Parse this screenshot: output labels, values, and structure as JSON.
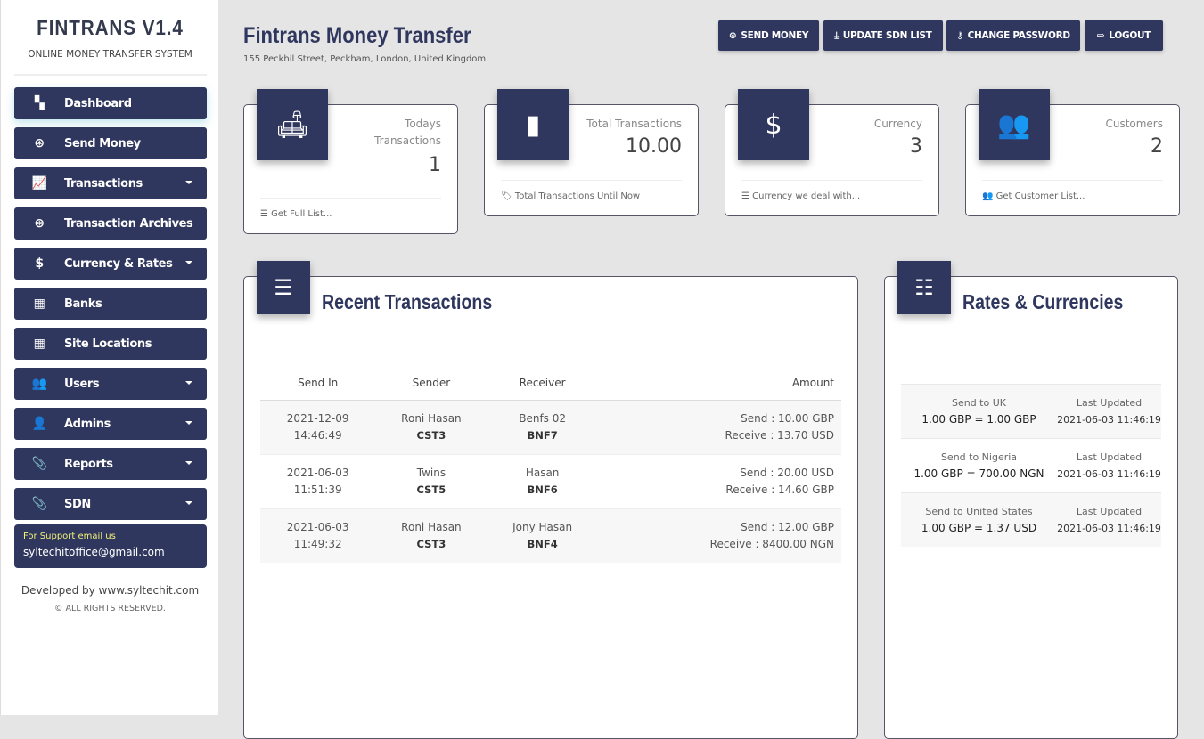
{
  "sidebar": {
    "brand": "FINTRANS V1.4",
    "tagline": "ONLINE  MONEY TRANSFER SYSTEM",
    "items": [
      {
        "label": "Dashboard",
        "icon": "dashboard-icon"
      },
      {
        "label": "Send Money",
        "icon": "dollar-circle-icon"
      },
      {
        "label": "Transactions",
        "icon": "chart-line-icon",
        "dropdown": true
      },
      {
        "label": "Transaction Archives",
        "icon": "dollar-circle-icon"
      },
      {
        "label": "Currency & Rates",
        "icon": "dollar-icon",
        "dropdown": true
      },
      {
        "label": "Banks",
        "icon": "building-icon"
      },
      {
        "label": "Site Locations",
        "icon": "building-icon"
      },
      {
        "label": "Users",
        "icon": "users-icon",
        "dropdown": true
      },
      {
        "label": "Admins",
        "icon": "admin-icon",
        "dropdown": true
      },
      {
        "label": "Reports",
        "icon": "paperclip-icon",
        "dropdown": true
      },
      {
        "label": "SDN",
        "icon": "paperclip-icon",
        "dropdown": true
      }
    ],
    "support_label": "For Support email us",
    "support_email": "syltechitoffice@gmail.com",
    "developed": "Developed by www.syltechit.com",
    "rights": "© ALL  RIGHTS  RESERVED."
  },
  "header": {
    "title": "Fintrans Money Transfer",
    "address": "155  Peckhil Street,  Peckham,  London, United  Kingdom",
    "buttons": [
      {
        "label": "SEND MONEY",
        "icon": "dollar-circle-icon"
      },
      {
        "label": "UPDATE SDN LIST",
        "icon": "download-icon"
      },
      {
        "label": "CHANGE PASSWORD",
        "icon": "key-icon"
      },
      {
        "label": "LOGOUT",
        "icon": "logout-icon"
      }
    ]
  },
  "cards": [
    {
      "label": "Todays Transactions",
      "value": "1",
      "footer": "Get Full List..."
    },
    {
      "label": "Total Transactions",
      "value": "10.00",
      "footer": "Total Transactions Until Now"
    },
    {
      "label": "Currency",
      "value": "3",
      "footer": "Currency we deal with..."
    },
    {
      "label": "Customers",
      "value": "2",
      "footer": "Get Customer List..."
    }
  ],
  "recent": {
    "title": "Recent Transactions",
    "columns": [
      "Send In",
      "Sender",
      "Receiver",
      "Amount"
    ],
    "rows": [
      {
        "date": "2021-12-09",
        "time": "14:46:49",
        "sender": "Roni Hasan",
        "sender_id": "CST3",
        "receiver": "Benfs 02",
        "receiver_id": "BNF7",
        "send": "Send : 10.00 GBP",
        "receive": "Receive : 13.70 USD"
      },
      {
        "date": "2021-06-03",
        "time": "11:51:39",
        "sender": "Twins",
        "sender_id": "CST5",
        "receiver": "Hasan",
        "receiver_id": "BNF6",
        "send": "Send : 20.00 USD",
        "receive": "Receive : 14.60 GBP"
      },
      {
        "date": "2021-06-03",
        "time": "11:49:32",
        "sender": "Roni Hasan",
        "sender_id": "CST3",
        "receiver": "Jony Hasan",
        "receiver_id": "BNF4",
        "send": "Send : 12.00 GBP",
        "receive": "Receive : 8400.00  NGN"
      }
    ]
  },
  "rates": {
    "title": "Rates & Currencies",
    "rows": [
      {
        "dest": "Send to UK",
        "rate": "1.00 GBP = 1.00 GBP",
        "updated_label": "Last Updated",
        "updated": "2021-06-03 11:46:19"
      },
      {
        "dest": "Send to  Nigeria",
        "rate": "1.00 GBP = 700.00  NGN",
        "updated_label": "Last Updated",
        "updated": "2021-06-03 11:46:19"
      },
      {
        "dest": "Send to United States",
        "rate": "1.00 GBP = 1.37 USD",
        "updated_label": "Last Updated",
        "updated": "2021-06-03 11:46:19"
      }
    ]
  },
  "colors": {
    "navy": "#30375e",
    "background": "#e5e5e5"
  }
}
